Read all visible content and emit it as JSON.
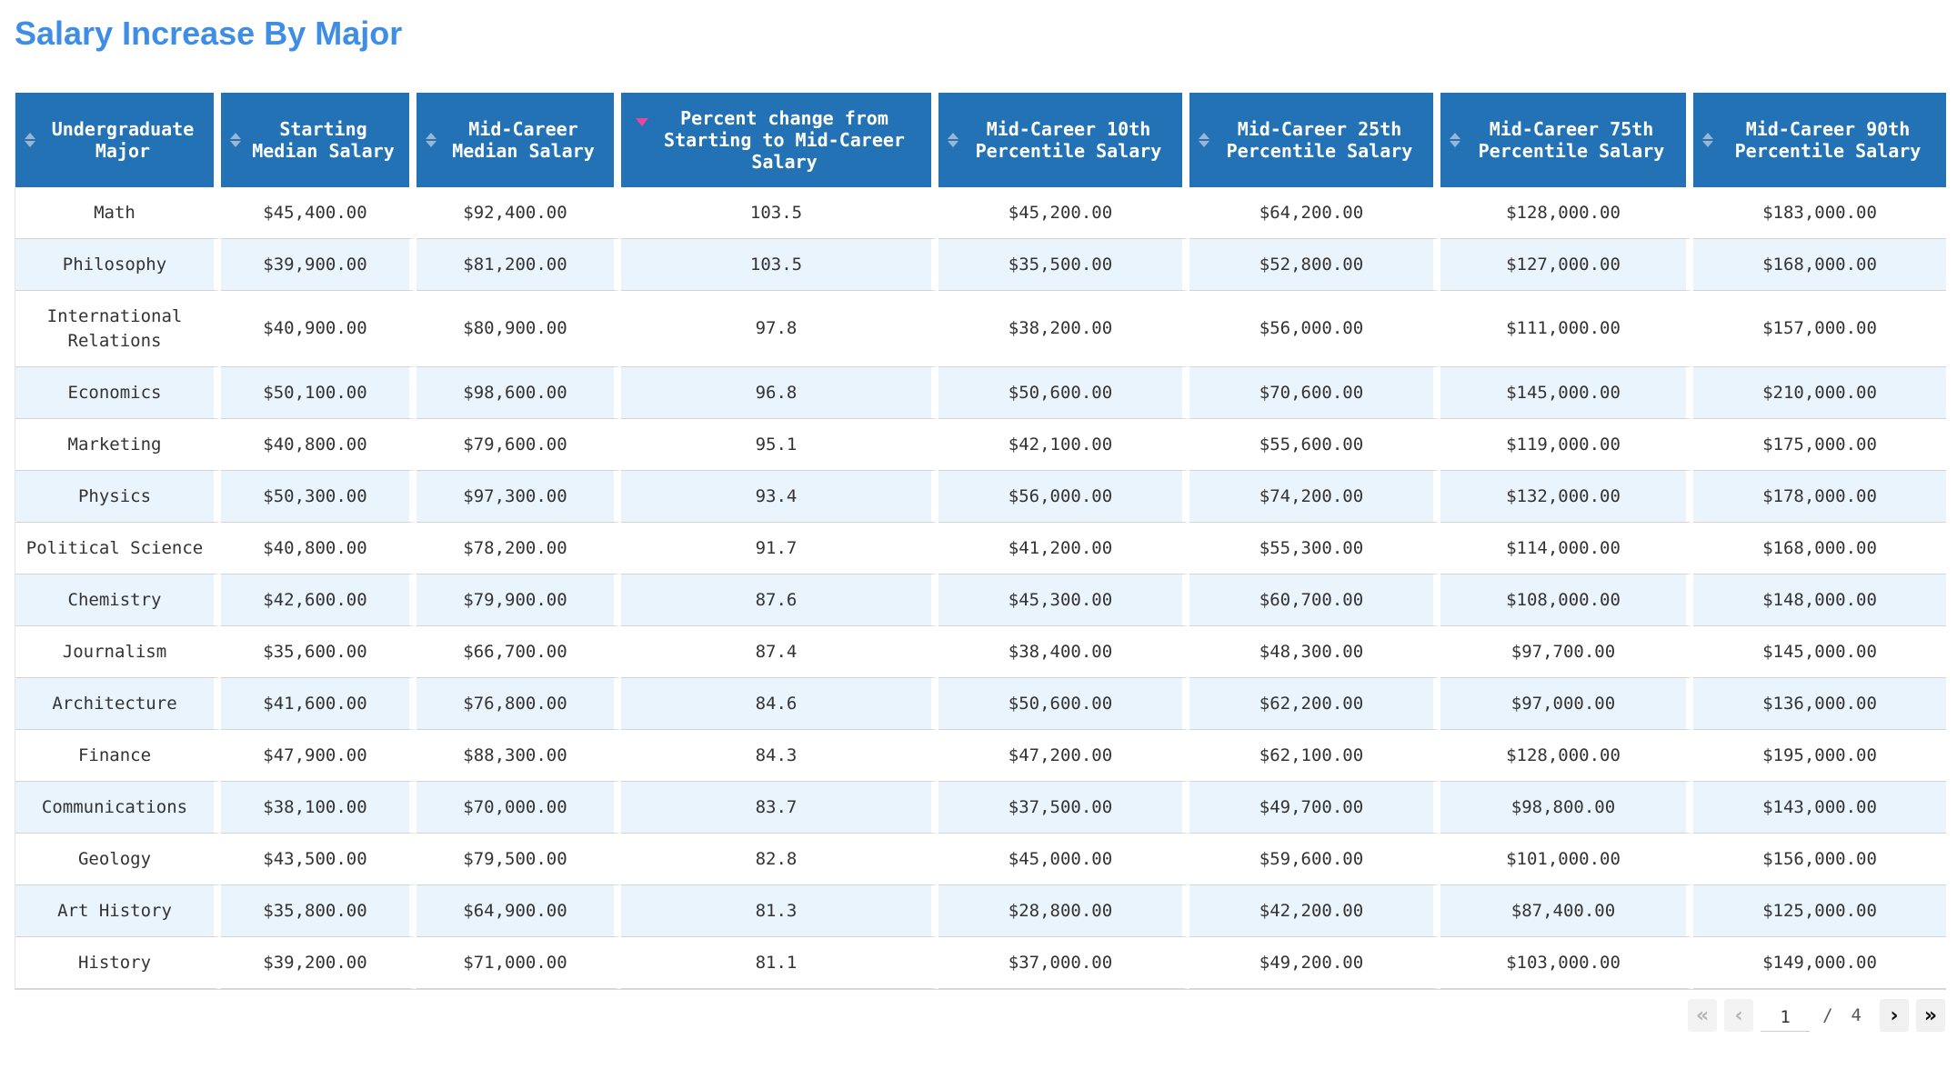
{
  "title": "Salary Increase By Major",
  "table": {
    "columns": [
      {
        "label": "Undergraduate Major",
        "sort": "none"
      },
      {
        "label": "Starting Median Salary",
        "sort": "none"
      },
      {
        "label": "Mid-Career Median Salary",
        "sort": "none"
      },
      {
        "label": "Percent change from Starting to Mid-Career Salary",
        "sort": "descending"
      },
      {
        "label": "Mid-Career 10th Percentile Salary",
        "sort": "none"
      },
      {
        "label": "Mid-Career 25th Percentile Salary",
        "sort": "none"
      },
      {
        "label": "Mid-Career 75th Percentile Salary",
        "sort": "none"
      },
      {
        "label": "Mid-Career 90th Percentile Salary",
        "sort": "none"
      }
    ],
    "rows": [
      [
        "Math",
        "$45,400.00",
        "$92,400.00",
        "103.5",
        "$45,200.00",
        "$64,200.00",
        "$128,000.00",
        "$183,000.00"
      ],
      [
        "Philosophy",
        "$39,900.00",
        "$81,200.00",
        "103.5",
        "$35,500.00",
        "$52,800.00",
        "$127,000.00",
        "$168,000.00"
      ],
      [
        "International Relations",
        "$40,900.00",
        "$80,900.00",
        "97.8",
        "$38,200.00",
        "$56,000.00",
        "$111,000.00",
        "$157,000.00"
      ],
      [
        "Economics",
        "$50,100.00",
        "$98,600.00",
        "96.8",
        "$50,600.00",
        "$70,600.00",
        "$145,000.00",
        "$210,000.00"
      ],
      [
        "Marketing",
        "$40,800.00",
        "$79,600.00",
        "95.1",
        "$42,100.00",
        "$55,600.00",
        "$119,000.00",
        "$175,000.00"
      ],
      [
        "Physics",
        "$50,300.00",
        "$97,300.00",
        "93.4",
        "$56,000.00",
        "$74,200.00",
        "$132,000.00",
        "$178,000.00"
      ],
      [
        "Political Science",
        "$40,800.00",
        "$78,200.00",
        "91.7",
        "$41,200.00",
        "$55,300.00",
        "$114,000.00",
        "$168,000.00"
      ],
      [
        "Chemistry",
        "$42,600.00",
        "$79,900.00",
        "87.6",
        "$45,300.00",
        "$60,700.00",
        "$108,000.00",
        "$148,000.00"
      ],
      [
        "Journalism",
        "$35,600.00",
        "$66,700.00",
        "87.4",
        "$38,400.00",
        "$48,300.00",
        "$97,700.00",
        "$145,000.00"
      ],
      [
        "Architecture",
        "$41,600.00",
        "$76,800.00",
        "84.6",
        "$50,600.00",
        "$62,200.00",
        "$97,000.00",
        "$136,000.00"
      ],
      [
        "Finance",
        "$47,900.00",
        "$88,300.00",
        "84.3",
        "$47,200.00",
        "$62,100.00",
        "$128,000.00",
        "$195,000.00"
      ],
      [
        "Communications",
        "$38,100.00",
        "$70,000.00",
        "83.7",
        "$37,500.00",
        "$49,700.00",
        "$98,800.00",
        "$143,000.00"
      ],
      [
        "Geology",
        "$43,500.00",
        "$79,500.00",
        "82.8",
        "$45,000.00",
        "$59,600.00",
        "$101,000.00",
        "$156,000.00"
      ],
      [
        "Art History",
        "$35,800.00",
        "$64,900.00",
        "81.3",
        "$28,800.00",
        "$42,200.00",
        "$87,400.00",
        "$125,000.00"
      ],
      [
        "History",
        "$39,200.00",
        "$71,000.00",
        "81.1",
        "$37,000.00",
        "$49,200.00",
        "$103,000.00",
        "$149,000.00"
      ]
    ]
  },
  "pagination": {
    "current_page": "1",
    "separator": "/",
    "total_pages": "4",
    "icons": [
      "first-page-icon",
      "previous-page-icon",
      "next-page-icon",
      "last-page-icon"
    ]
  },
  "colors": {
    "title": "#3f8ee6",
    "header_bg": "#2272b5",
    "stripe": "#eaf4fc",
    "sort_active": "#e8479a"
  }
}
